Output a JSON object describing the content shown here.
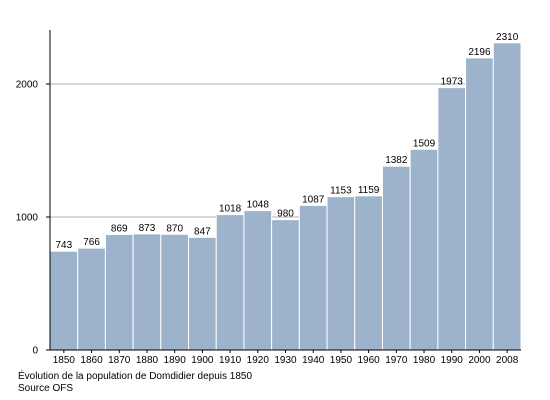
{
  "chart_data": {
    "type": "bar",
    "categories": [
      "1850",
      "1860",
      "1870",
      "1880",
      "1890",
      "1900",
      "1910",
      "1920",
      "1930",
      "1940",
      "1950",
      "1960",
      "1970",
      "1980",
      "1990",
      "2000",
      "2008"
    ],
    "values": [
      743,
      766,
      869,
      873,
      870,
      847,
      1018,
      1048,
      980,
      1087,
      1153,
      1159,
      1382,
      1509,
      1973,
      2196,
      2310
    ],
    "title": "Évolution de la population de Domdidier depuis 1850",
    "source": "Source OFS",
    "xlabel": "",
    "ylabel": "",
    "ylim": [
      0,
      2400
    ],
    "yticks": [
      0,
      1000,
      2000
    ],
    "grid": true,
    "bar_color": "#9db2cb",
    "bar_edge_color": "#ffffff",
    "grid_color": "#999999"
  }
}
